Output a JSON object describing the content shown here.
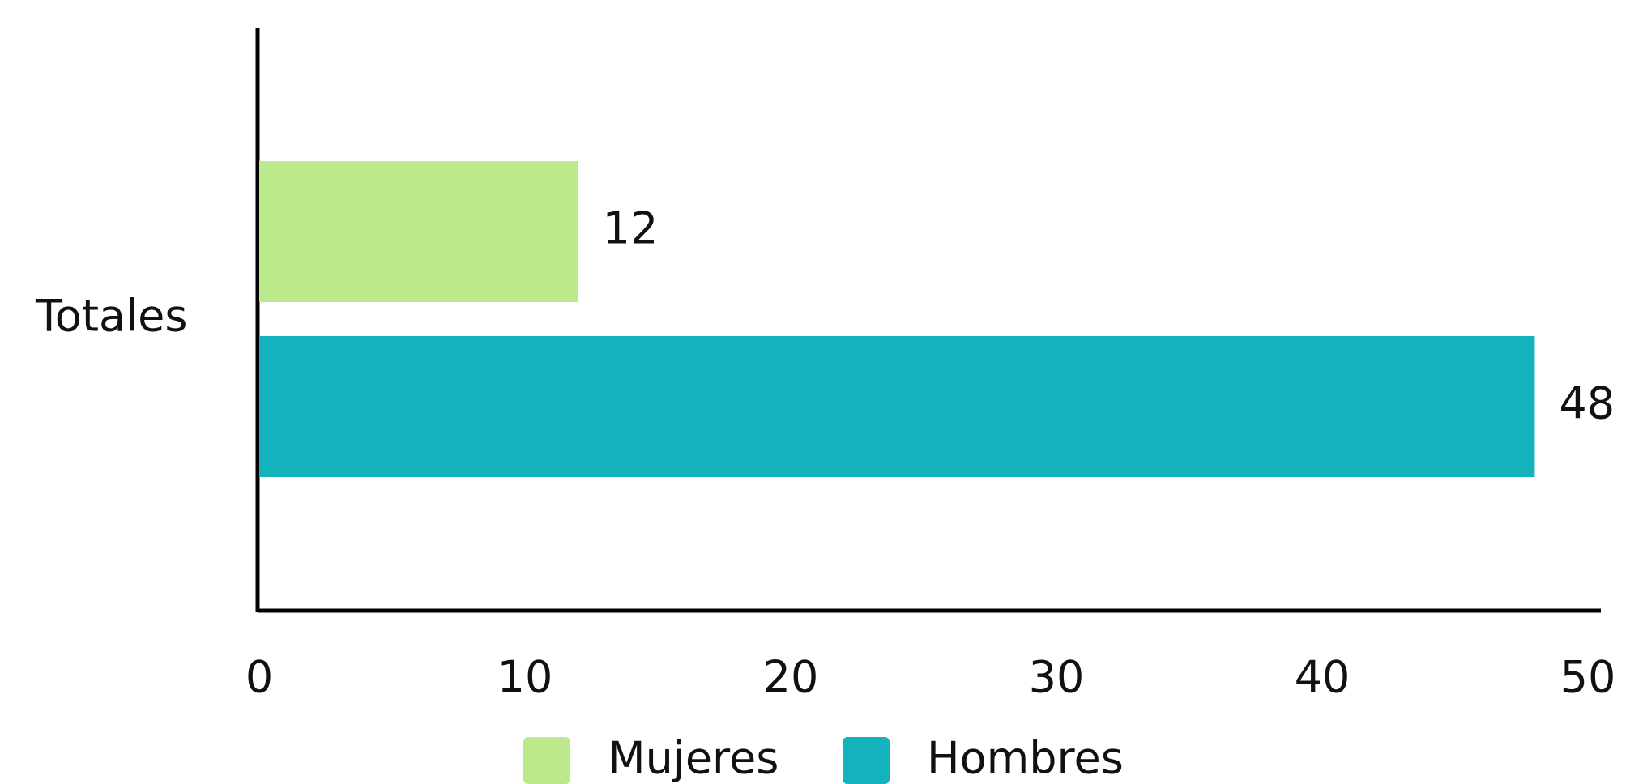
{
  "chart_data": {
    "type": "bar",
    "orientation": "horizontal",
    "categories": [
      "Totales"
    ],
    "series": [
      {
        "name": "Mujeres",
        "color": "#bce98b",
        "values": [
          12
        ]
      },
      {
        "name": "Hombres",
        "color": "#12b3bd",
        "values": [
          48
        ]
      }
    ],
    "xlim": [
      0,
      50
    ],
    "xticks": [
      0,
      10,
      20,
      30,
      40,
      50
    ],
    "grid": false,
    "legend": "bottom"
  }
}
